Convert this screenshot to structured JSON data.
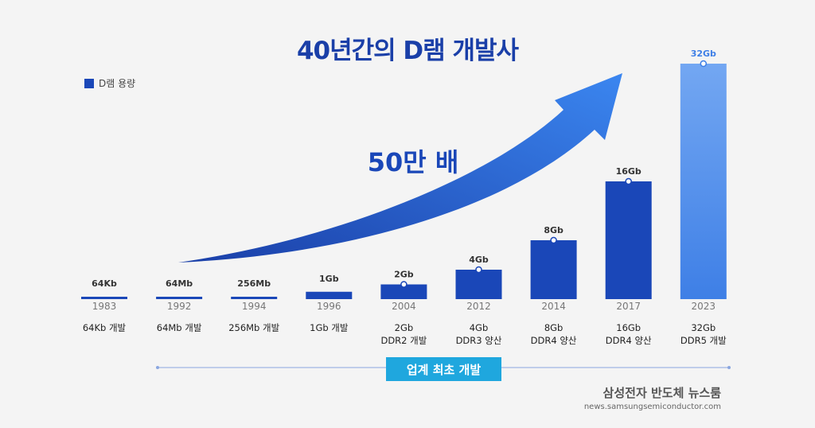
{
  "title": "40년간의 D램 개발사",
  "legend_label": "D램 용량",
  "multiplier_label": "50만 배",
  "badge_label": "업계 최초 개발",
  "footer": {
    "name": "삼성전자 반도체 뉴스룸",
    "url": "news.samsungsemiconductor.com"
  },
  "colors": {
    "bar_dark": "#1a47b8",
    "bar_highlight": "#5b96ee",
    "arrow": "#2a6be0",
    "badge": "#1fa7de"
  },
  "chart_data": {
    "type": "bar",
    "categories": [
      "1983",
      "1992",
      "1994",
      "1996",
      "2004",
      "2012",
      "2014",
      "2017",
      "2023"
    ],
    "series": [
      {
        "name": "D램 용량",
        "values_kb": [
          64,
          65536,
          262144,
          1048576,
          2097152,
          4194304,
          8388608,
          16777216,
          33554432
        ],
        "value_labels": [
          "64Kb",
          "64Mb",
          "256Mb",
          "1Gb",
          "2Gb",
          "4Gb",
          "8Gb",
          "16Gb",
          "32Gb"
        ]
      }
    ],
    "descriptions": [
      [
        "64Kb 개발"
      ],
      [
        "64Mb 개발"
      ],
      [
        "256Mb 개발"
      ],
      [
        "1Gb 개발"
      ],
      [
        "2Gb",
        "DDR2 개발"
      ],
      [
        "4Gb",
        "DDR3 양산"
      ],
      [
        "8Gb",
        "DDR4 양산"
      ],
      [
        "16Gb",
        "DDR4 양산"
      ],
      [
        "32Gb",
        "DDR5 개발"
      ]
    ],
    "highlight_index": 8
  }
}
